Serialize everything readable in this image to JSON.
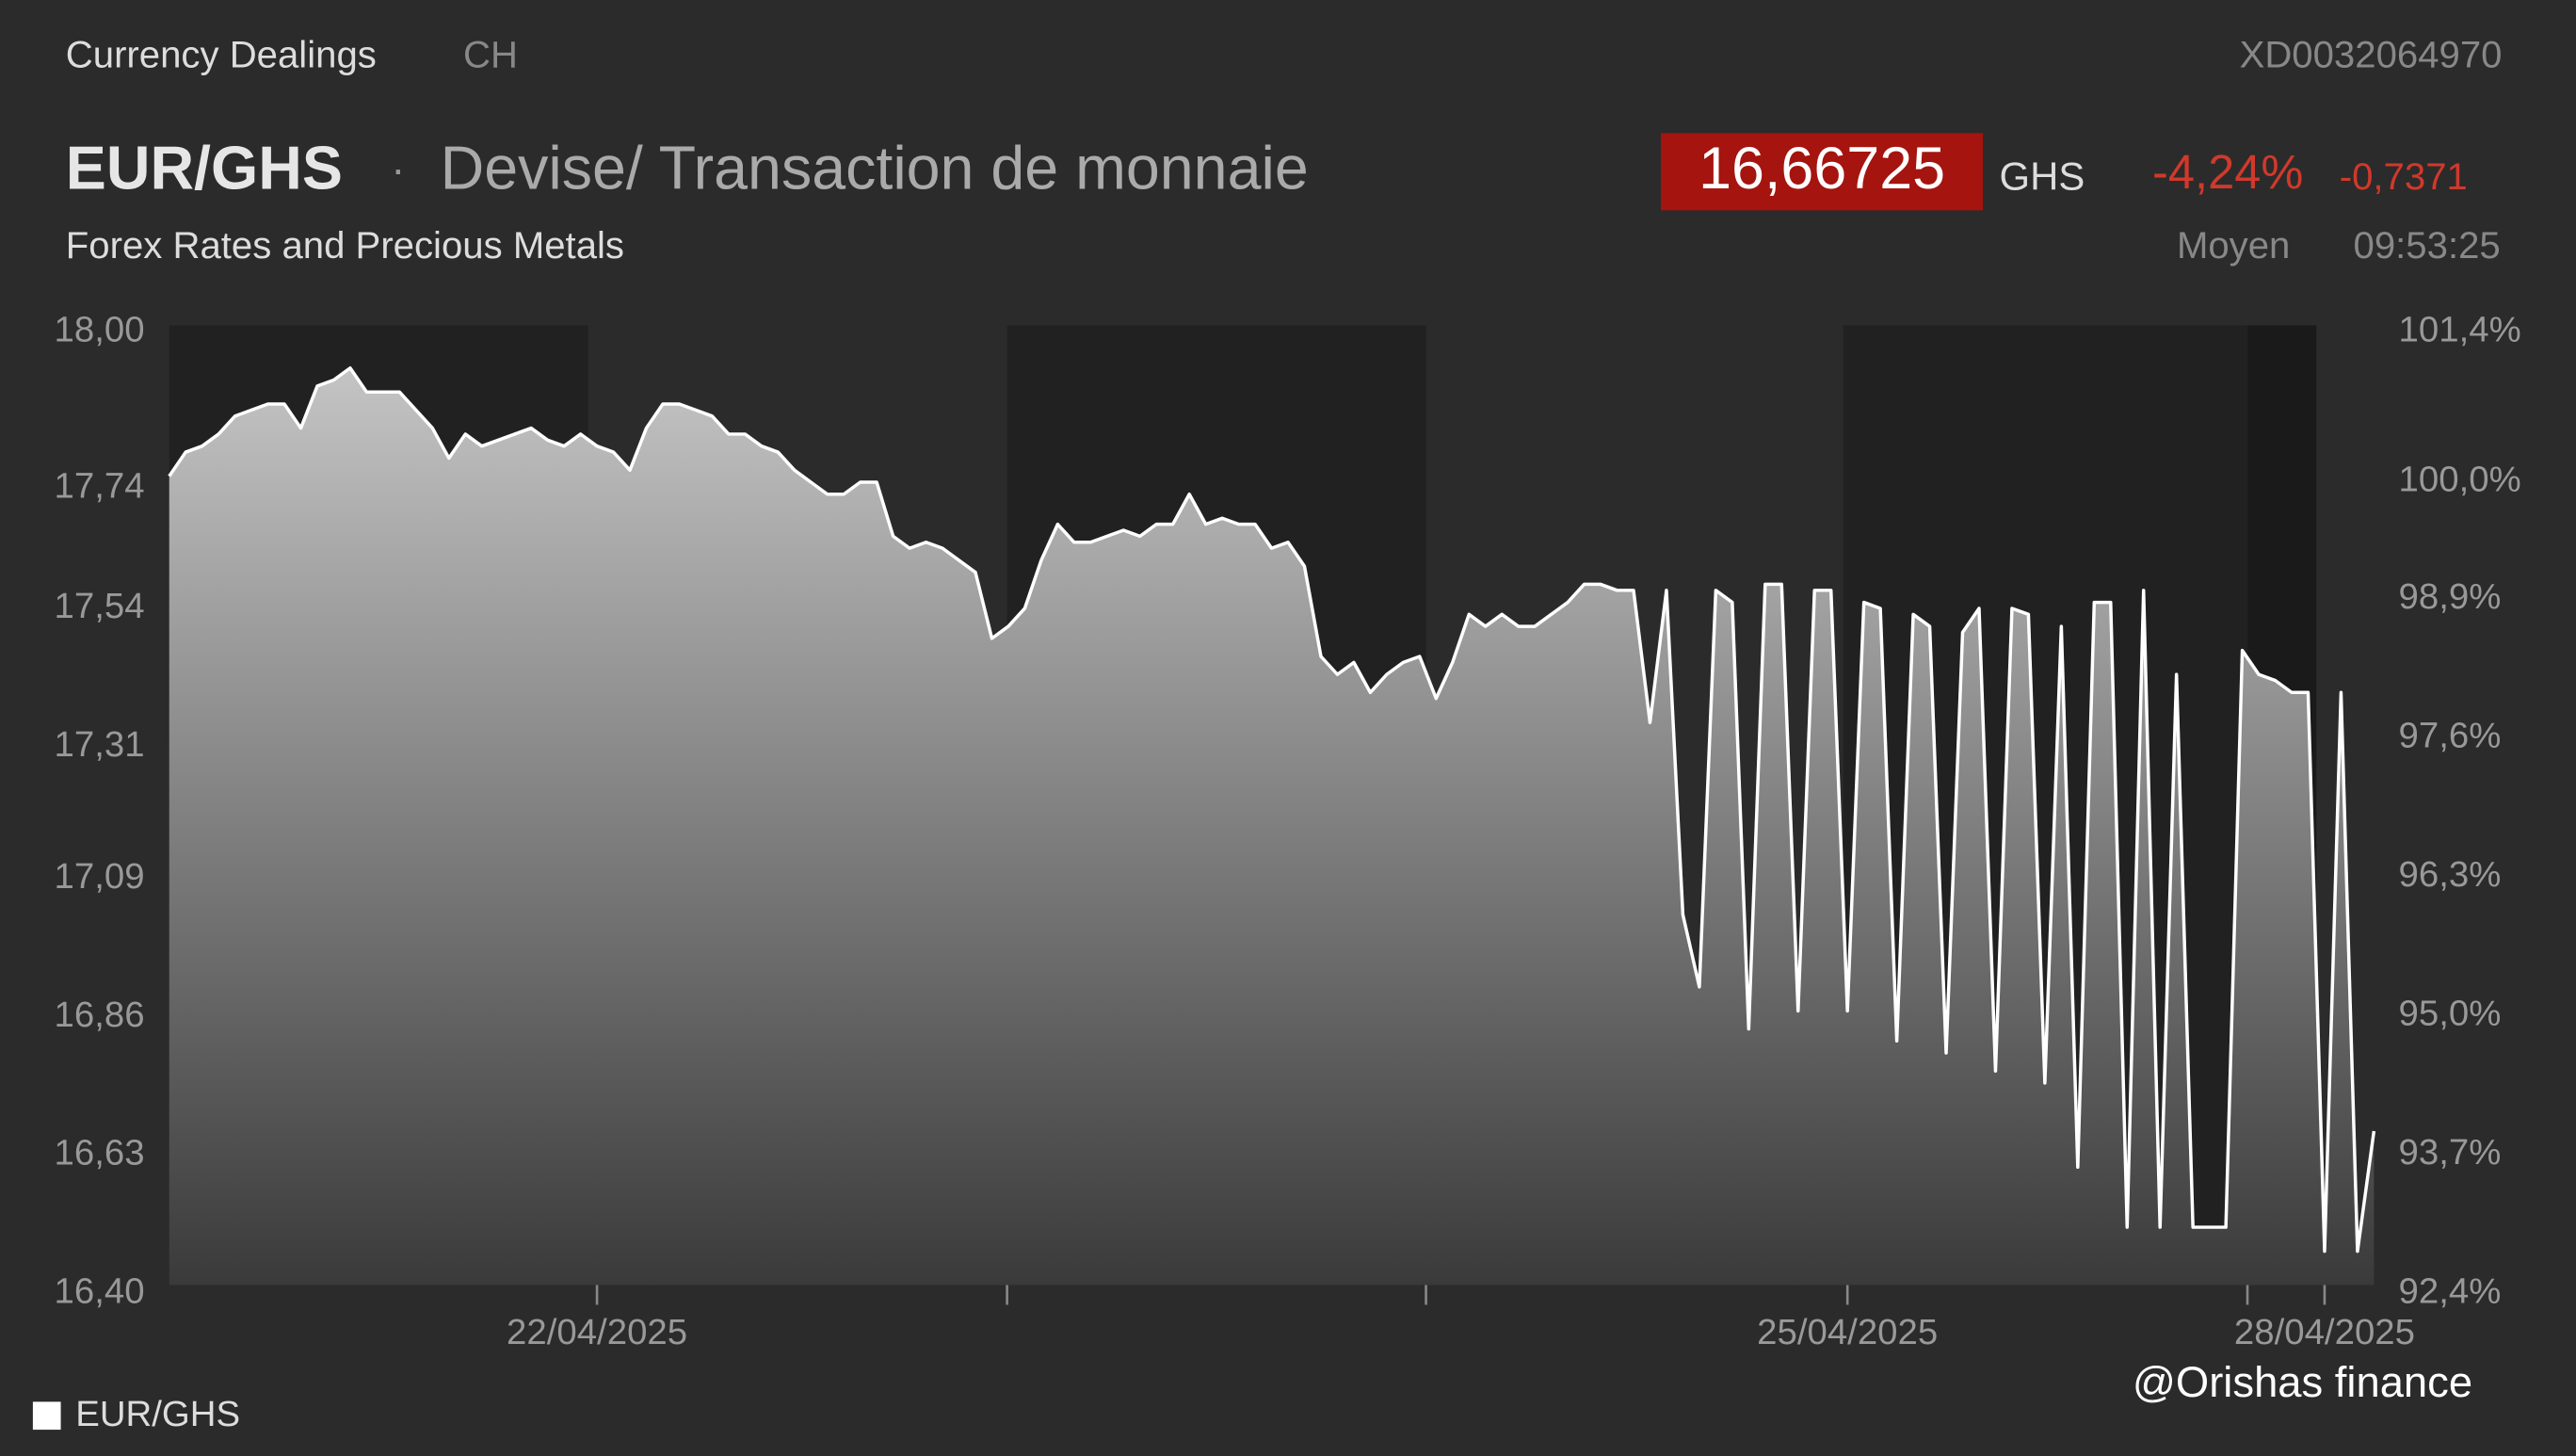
{
  "header": {
    "section": "Currency Dealings",
    "country": "CH",
    "code": "XD0032064970",
    "pair": "EUR/GHS",
    "separator": "·",
    "description": "Devise/ Transaction de monnaie",
    "subtitle": "Forex Rates and Precious Metals",
    "price": "16,66725",
    "currency": "GHS",
    "change_pct": "-4,24%",
    "change_abs": "-0,7371",
    "price_type": "Moyen",
    "time": "09:53:25"
  },
  "chart_data": {
    "type": "area",
    "color": "#ffffff",
    "categories": [
      null,
      null,
      null,
      null,
      null,
      null,
      null,
      null,
      null,
      null,
      null,
      null,
      null,
      null,
      null,
      null,
      null,
      null,
      null,
      null,
      null,
      null,
      null,
      null,
      null,
      null,
      "22/04/2025",
      null,
      null,
      null,
      null,
      null,
      null,
      null,
      null,
      null,
      null,
      null,
      null,
      null,
      null,
      null,
      null,
      null,
      null,
      null,
      null,
      null,
      null,
      null,
      null,
      null,
      null,
      null,
      null,
      null,
      null,
      null,
      null,
      null,
      null,
      null,
      null,
      null,
      null,
      null,
      null,
      null,
      null,
      null,
      null,
      null,
      null,
      null,
      null,
      null,
      null,
      null,
      null,
      null,
      null,
      null,
      null,
      null,
      null,
      null,
      null,
      null,
      null,
      null,
      null,
      null,
      null,
      null,
      null,
      null,
      null,
      null,
      null,
      null,
      null,
      null,
      "25/04/2025",
      null,
      null,
      null,
      null,
      null,
      null,
      null,
      null,
      null,
      null,
      null,
      null,
      null,
      null,
      null,
      null,
      null,
      null,
      null,
      null,
      null,
      null,
      null,
      null,
      null,
      null,
      null,
      null,
      "28/04/2025",
      null,
      null,
      null
    ],
    "series": [
      {
        "name": "EUR/GHS",
        "color": "#ffffff",
        "values": [
          17.76,
          17.8,
          17.81,
          17.83,
          17.86,
          17.87,
          17.88,
          17.88,
          17.84,
          17.91,
          17.92,
          17.94,
          17.9,
          17.9,
          17.9,
          17.87,
          17.84,
          17.79,
          17.83,
          17.81,
          17.82,
          17.83,
          17.84,
          17.82,
          17.81,
          17.83,
          17.81,
          17.8,
          17.77,
          17.84,
          17.88,
          17.88,
          17.87,
          17.86,
          17.83,
          17.83,
          17.81,
          17.8,
          17.77,
          17.75,
          17.73,
          17.73,
          17.75,
          17.75,
          17.66,
          17.64,
          17.65,
          17.64,
          17.62,
          17.6,
          17.49,
          17.51,
          17.54,
          17.62,
          17.68,
          17.65,
          17.65,
          17.66,
          17.67,
          17.66,
          17.68,
          17.68,
          17.73,
          17.68,
          17.69,
          17.68,
          17.68,
          17.64,
          17.65,
          17.61,
          17.46,
          17.43,
          17.45,
          17.4,
          17.43,
          17.45,
          17.46,
          17.39,
          17.45,
          17.53,
          17.51,
          17.53,
          17.51,
          17.51,
          17.53,
          17.55,
          17.58,
          17.58,
          17.57,
          17.57,
          17.35,
          17.57,
          17.03,
          16.91,
          17.57,
          17.55,
          16.84,
          17.58,
          17.58,
          16.87,
          17.57,
          17.57,
          16.87,
          17.55,
          17.54,
          16.82,
          17.53,
          17.51,
          16.8,
          17.5,
          17.54,
          16.77,
          17.54,
          17.53,
          16.75,
          17.51,
          16.61,
          17.55,
          17.55,
          16.51,
          17.57,
          16.51,
          17.43,
          16.51,
          16.51,
          16.51,
          17.47,
          17.43,
          17.42,
          17.4,
          17.4,
          16.47,
          17.4,
          16.47,
          16.67
        ]
      }
    ],
    "ylim": [
      16.4,
      18.0
    ],
    "yticks": [
      {
        "value": 16.4,
        "label": "16,40"
      },
      {
        "value": 16.63,
        "label": "16,63"
      },
      {
        "value": 16.86,
        "label": "16,86"
      },
      {
        "value": 17.09,
        "label": "17,09"
      },
      {
        "value": 17.31,
        "label": "17,31"
      },
      {
        "value": 17.54,
        "label": "17,54"
      },
      {
        "value": 17.74,
        "label": "17,74"
      },
      {
        "value": 18.0,
        "label": "18,00"
      }
    ],
    "y2lim": [
      92.4,
      101.4
    ],
    "y2ticks": [
      {
        "value": 92.4,
        "label": "92,4%"
      },
      {
        "value": 93.7,
        "label": "93,7%"
      },
      {
        "value": 95.0,
        "label": "95,0%"
      },
      {
        "value": 96.3,
        "label": "96,3%"
      },
      {
        "value": 97.6,
        "label": "97,6%"
      },
      {
        "value": 98.9,
        "label": "98,9%"
      },
      {
        "value": 100.0,
        "label": "100,0%"
      },
      {
        "value": 101.4,
        "label": "101,4%"
      }
    ],
    "legend": "bottom-left",
    "annotation": "@Orishas finance"
  }
}
